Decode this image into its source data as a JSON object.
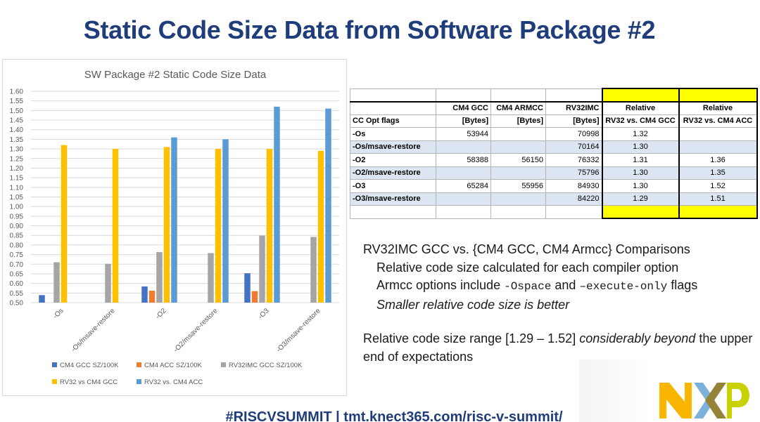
{
  "title": "Static Code Size Data from Software Package #2",
  "chart_data": {
    "type": "bar",
    "title": "SW Package #2 Static Code Size Data",
    "categories": [
      "-Os",
      "-Os/msave-restore",
      "-O2",
      "-O2/msave-restore",
      "-O3",
      "-O3/msave-restore"
    ],
    "ylim": [
      0.5,
      1.6
    ],
    "yticks": [
      "1.60",
      "1.55",
      "1.50",
      "1.45",
      "1.40",
      "1.35",
      "1.30",
      "1.25",
      "1.20",
      "1.15",
      "1.10",
      "1.05",
      "1.00",
      "0.95",
      "0.90",
      "0.85",
      "0.80",
      "0.75",
      "0.70",
      "0.65",
      "0.60",
      "0.55",
      "0.50"
    ],
    "series": [
      {
        "name": "CM4 GCC SZ/100K",
        "color": "#4472c4",
        "values": [
          0.539,
          null,
          0.584,
          null,
          0.653,
          null
        ]
      },
      {
        "name": "CM4 ACC SZ/100K",
        "color": "#ed7d31",
        "values": [
          null,
          null,
          0.562,
          null,
          0.56,
          null
        ]
      },
      {
        "name": "RV32IMC GCC SZ/100K",
        "color": "#a5a5a5",
        "values": [
          0.71,
          0.702,
          0.763,
          0.758,
          0.849,
          0.842
        ]
      },
      {
        "name": "RV32 vs CM4 GCC",
        "color": "#ffc000",
        "values": [
          1.32,
          1.3,
          1.31,
          1.3,
          1.3,
          1.29
        ]
      },
      {
        "name": "RV32 vs. CM4 ACC",
        "color": "#5b9bd5",
        "values": [
          null,
          null,
          1.36,
          1.35,
          1.52,
          1.51
        ]
      }
    ]
  },
  "table": {
    "header1": [
      "",
      "CM4 GCC",
      "CM4 ARMCC",
      "RV32IMC",
      "Relative",
      "Relative"
    ],
    "header2": [
      "CC Opt flags",
      "[Bytes]",
      "[Bytes]",
      "[Bytes]",
      "RV32 vs. CM4 GCC",
      "RV32 vs. CM4 ACC"
    ],
    "rows": [
      [
        "-Os",
        "53944",
        "",
        "70998",
        "1.32",
        ""
      ],
      [
        "-Os/msave-restore",
        "",
        "",
        "70164",
        "1.30",
        ""
      ],
      [
        "-O2",
        "58388",
        "56150",
        "76332",
        "1.31",
        "1.36"
      ],
      [
        "-O2/msave-restore",
        "",
        "",
        "75796",
        "1.30",
        "1.35"
      ],
      [
        "-O3",
        "65284",
        "55956",
        "84930",
        "1.30",
        "1.52"
      ],
      [
        "-O3/msave-restore",
        "",
        "",
        "84220",
        "1.29",
        "1.51"
      ]
    ]
  },
  "notes": {
    "heading": "RV32IMC GCC vs. {CM4 GCC, CM4 Armcc} Comparisons",
    "line1": "Relative code size calculated for each compiler option",
    "line2_a": "Armcc options include ",
    "line2_code1": "-Ospace",
    "line2_b": " and ",
    "line2_code2": "–execute-only",
    "line2_c": " flags",
    "line3": "Smaller relative code size is better",
    "p2_a": "Relative code size range [1.29 – 1.52] ",
    "p2_em": "considerably beyond",
    "p2_b": " the upper end of expectations"
  },
  "logo": {
    "text": "NXP",
    "colors": {
      "n": "#f9b500",
      "x_left": "#7bb1db",
      "x_right": "#958437",
      "p": "#c9d200"
    }
  },
  "footer": "#RISCVSUMMIT  |  tmt.knect365.com/risc-v-summit/"
}
